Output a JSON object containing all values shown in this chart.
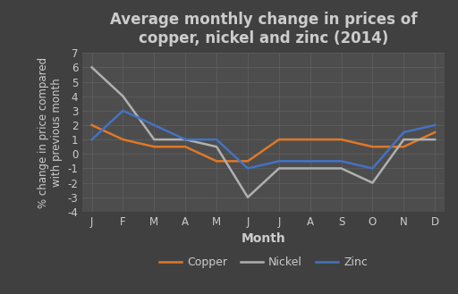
{
  "title": "Average monthly change in prices of\ncopper, nickel and zinc (2014)",
  "xlabel": "Month",
  "ylabel": "% change in price compared\nwith previous month",
  "months": [
    "J",
    "F",
    "M",
    "A",
    "M",
    "J",
    "J",
    "A",
    "S",
    "O",
    "N",
    "D"
  ],
  "copper": [
    2,
    1,
    0.5,
    0.5,
    -0.5,
    -0.5,
    1,
    1,
    1,
    0.5,
    0.5,
    1.5
  ],
  "nickel": [
    6,
    4,
    1,
    1,
    0.5,
    -3,
    -1,
    -1,
    -1,
    -2,
    1,
    1
  ],
  "zinc": [
    1,
    3,
    2,
    1,
    1,
    -1,
    -0.5,
    -0.5,
    -0.5,
    -1,
    1.5,
    2
  ],
  "copper_color": "#e07828",
  "nickel_color": "#b0b0b0",
  "zinc_color": "#4472c4",
  "background_color": "#404040",
  "plot_bg_color": "#4d4d4d",
  "text_color": "#cccccc",
  "grid_color": "#606060",
  "ylim": [
    -4,
    7
  ],
  "yticks": [
    -4,
    -3,
    -2,
    -1,
    0,
    1,
    2,
    3,
    4,
    5,
    6,
    7
  ],
  "title_fontsize": 12,
  "label_fontsize": 10,
  "tick_fontsize": 8.5,
  "legend_fontsize": 9,
  "line_width": 1.8
}
